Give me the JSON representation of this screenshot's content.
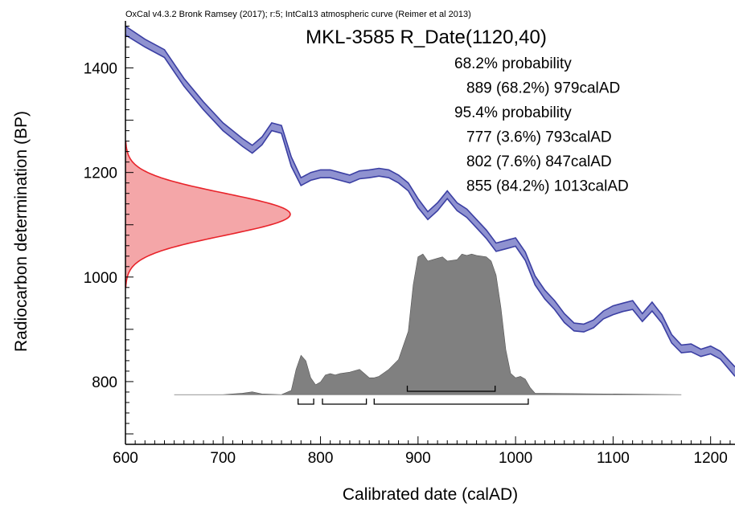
{
  "header": "OxCal v4.3.2 Bronk Ramsey (2017); r:5; IntCal13 atmospheric curve (Reimer et al 2013)",
  "chart_data": {
    "type": "area",
    "title": "MKL-3585 R_Date(1120,40)",
    "xlabel": "Calibrated date (calAD)",
    "ylabel": "Radiocarbon determination (BP)",
    "xlim": [
      600,
      1225
    ],
    "ylim": [
      680,
      1490
    ],
    "x_ticks": [
      600,
      700,
      800,
      900,
      1000,
      1100,
      1200
    ],
    "y_ticks": [
      800,
      1000,
      1200,
      1400
    ],
    "grid": false,
    "annotations": [
      "68.2% probability",
      "889 (68.2%) 979calAD",
      "95.4% probability",
      "777 (3.6%) 793calAD",
      "802 (7.6%) 847calAD",
      "855 (84.2%) 1013calAD"
    ],
    "radiocarbon_date": {
      "mean_bp": 1120,
      "sigma": 40,
      "color": "#e8232a",
      "fill": "#f4a6a8"
    },
    "calibration_curve": {
      "color": "#3b3fa3",
      "fill": "#8f92d0",
      "x": [
        600,
        620,
        640,
        660,
        680,
        700,
        720,
        730,
        740,
        750,
        760,
        770,
        780,
        790,
        800,
        810,
        820,
        830,
        840,
        850,
        860,
        870,
        880,
        890,
        900,
        910,
        920,
        930,
        940,
        950,
        960,
        970,
        980,
        990,
        1000,
        1010,
        1020,
        1030,
        1040,
        1050,
        1060,
        1070,
        1080,
        1090,
        1100,
        1110,
        1120,
        1130,
        1140,
        1150,
        1160,
        1170,
        1180,
        1190,
        1200,
        1210,
        1225
      ],
      "upper": [
        1480,
        1455,
        1435,
        1380,
        1335,
        1295,
        1265,
        1252,
        1268,
        1295,
        1290,
        1230,
        1190,
        1200,
        1205,
        1205,
        1200,
        1195,
        1203,
        1205,
        1208,
        1205,
        1195,
        1180,
        1150,
        1125,
        1142,
        1165,
        1142,
        1130,
        1110,
        1090,
        1065,
        1070,
        1075,
        1048,
        1002,
        975,
        955,
        930,
        912,
        910,
        918,
        935,
        945,
        950,
        955,
        930,
        952,
        928,
        890,
        870,
        872,
        862,
        868,
        858,
        828
      ],
      "lower": [
        1463,
        1440,
        1420,
        1365,
        1320,
        1280,
        1250,
        1237,
        1253,
        1280,
        1275,
        1212,
        1175,
        1185,
        1190,
        1190,
        1185,
        1180,
        1188,
        1190,
        1193,
        1190,
        1180,
        1165,
        1133,
        1110,
        1127,
        1150,
        1127,
        1114,
        1094,
        1074,
        1049,
        1054,
        1059,
        1032,
        985,
        958,
        938,
        913,
        897,
        895,
        903,
        920,
        928,
        934,
        938,
        915,
        935,
        912,
        874,
        855,
        857,
        848,
        853,
        843,
        810
      ]
    },
    "calibrated_distribution": {
      "color": "#808080",
      "x": [
        650,
        700,
        720,
        730,
        740,
        760,
        770,
        775,
        780,
        785,
        790,
        795,
        800,
        805,
        810,
        815,
        820,
        830,
        840,
        845,
        850,
        855,
        860,
        870,
        880,
        890,
        895,
        900,
        905,
        910,
        920,
        925,
        930,
        940,
        945,
        950,
        955,
        960,
        970,
        975,
        980,
        985,
        990,
        995,
        1000,
        1005,
        1010,
        1015,
        1020,
        1170
      ],
      "density": [
        0,
        0,
        0.01,
        0.02,
        0.005,
        0,
        0.03,
        0.18,
        0.28,
        0.24,
        0.12,
        0.07,
        0.09,
        0.14,
        0.15,
        0.14,
        0.15,
        0.16,
        0.18,
        0.15,
        0.12,
        0.12,
        0.13,
        0.18,
        0.25,
        0.45,
        0.78,
        0.98,
        1.0,
        0.95,
        0.97,
        0.98,
        0.95,
        0.96,
        1.0,
        0.99,
        1.0,
        0.99,
        0.98,
        0.95,
        0.85,
        0.62,
        0.32,
        0.15,
        0.12,
        0.13,
        0.11,
        0.05,
        0.01,
        0
      ]
    },
    "hpd_ranges": {
      "one_sigma": [
        [
          889,
          979
        ]
      ],
      "two_sigma": [
        [
          777,
          793
        ],
        [
          802,
          847
        ],
        [
          855,
          1013
        ]
      ]
    }
  }
}
